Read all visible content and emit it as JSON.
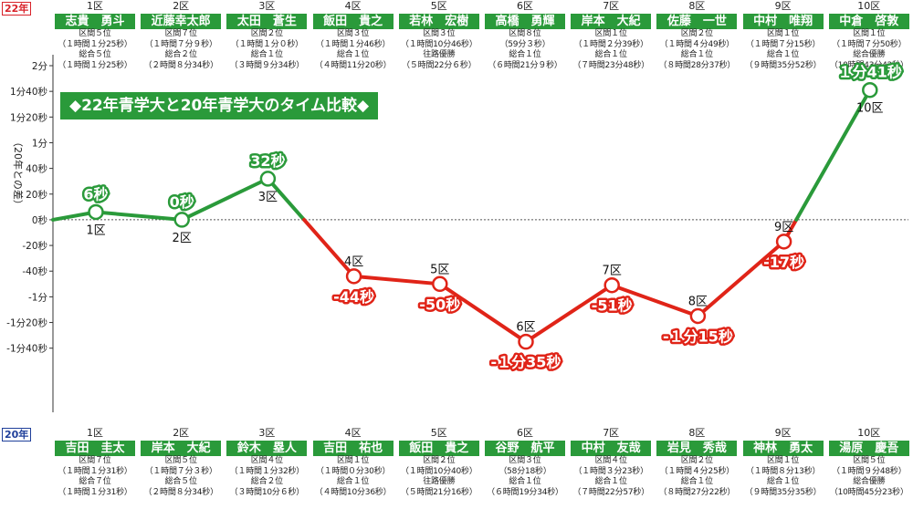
{
  "chart_data": {
    "type": "line",
    "title": "◆22年青学大と20年青学大のタイム比較◆",
    "ylabel": "（20年との差）",
    "y_unit": "seconds",
    "ylim": [
      -140,
      120
    ],
    "y_ticks": [
      {
        "value": 120,
        "label": "2分"
      },
      {
        "value": 100,
        "label": "1分40秒"
      },
      {
        "value": 80,
        "label": "1分20秒"
      },
      {
        "value": 60,
        "label": "1分"
      },
      {
        "value": 40,
        "label": "40秒"
      },
      {
        "value": 20,
        "label": "20秒"
      },
      {
        "value": 0,
        "label": "0秒"
      },
      {
        "value": -20,
        "label": "-20秒"
      },
      {
        "value": -40,
        "label": "-40秒"
      },
      {
        "value": -60,
        "label": "-1分"
      },
      {
        "value": -80,
        "label": "-1分20秒"
      },
      {
        "value": -100,
        "label": "-1分40秒"
      }
    ],
    "categories": [
      "1区",
      "2区",
      "3区",
      "4区",
      "5区",
      "6区",
      "7区",
      "8区",
      "9区",
      "10区"
    ],
    "values": [
      6,
      0,
      32,
      -44,
      -50,
      -95,
      -51,
      -75,
      -17,
      101
    ],
    "value_labels": [
      "6秒",
      "0秒",
      "32秒",
      "-44秒",
      "-50秒",
      "-１分35秒",
      "-51秒",
      "-１分15秒",
      "-17秒",
      "１分41秒"
    ],
    "colors": {
      "positive": "#2a9a3a",
      "negative": "#e02418",
      "node_fill": "#ffffff"
    },
    "grid": false
  },
  "top_band": {
    "year_tag": "22年",
    "legs": [
      {
        "leg": "1区",
        "name": "志貴　勇斗",
        "lines": [
          "区間５位",
          "（１時間１分25秒）",
          "総合５位",
          "（１時間１分25秒）"
        ]
      },
      {
        "leg": "2区",
        "name": "近藤幸太郎",
        "lines": [
          "区間７位",
          "（１時間７分９秒）",
          "総合２位",
          "（２時間８分34秒）"
        ]
      },
      {
        "leg": "3区",
        "name": "太田　蒼生",
        "lines": [
          "区間２位",
          "（１時間１分０秒）",
          "総合１位",
          "（３時間９分34秒）"
        ]
      },
      {
        "leg": "4区",
        "name": "飯田　貴之",
        "lines": [
          "区間３位",
          "（１時間１分46秒）",
          "総合１位",
          "（４時間11分20秒）"
        ]
      },
      {
        "leg": "5区",
        "name": "若林　宏樹",
        "lines": [
          "区間３位",
          "（１時間10分46秒）",
          "往路優勝",
          "（５時間22分６秒）"
        ]
      },
      {
        "leg": "6区",
        "name": "高橋　勇輝",
        "lines": [
          "区間８位",
          "（59分３秒）",
          "総合１位",
          "（６時間21分９秒）"
        ]
      },
      {
        "leg": "7区",
        "name": "岸本　大紀",
        "lines": [
          "区間１位",
          "（１時間２分39秒）",
          "総合１位",
          "（７時間23分48秒）"
        ]
      },
      {
        "leg": "8区",
        "name": "佐藤　一世",
        "lines": [
          "区間２位",
          "（１時間４分49秒）",
          "総合１位",
          "（８時間28分37秒）"
        ]
      },
      {
        "leg": "9区",
        "name": "中村　唯翔",
        "lines": [
          "区間１位",
          "（１時間７分15秒）",
          "総合１位",
          "（９時間35分52秒）"
        ]
      },
      {
        "leg": "10区",
        "name": "中倉　啓敦",
        "lines": [
          "区間１位",
          "（１時間７分50秒）",
          "総合優勝",
          "（10時間43分42秒）"
        ]
      }
    ]
  },
  "bottom_band": {
    "year_tag": "20年",
    "legs": [
      {
        "leg": "1区",
        "name": "吉田　圭太",
        "lines": [
          "区間７位",
          "（１時間１分31秒）",
          "総合７位",
          "（１時間１分31秒）"
        ]
      },
      {
        "leg": "2区",
        "name": "岸本　大紀",
        "lines": [
          "区間５位",
          "（１時間７分３秒）",
          "総合５位",
          "（２時間８分34秒）"
        ]
      },
      {
        "leg": "3区",
        "name": "鈴木　塁人",
        "lines": [
          "区間４位",
          "（１時間１分32秒）",
          "総合２位",
          "（３時間10分６秒）"
        ]
      },
      {
        "leg": "4区",
        "name": "吉田　祐也",
        "lines": [
          "区間１位",
          "（１時間０分30秒）",
          "総合１位",
          "（４時間10分36秒）"
        ]
      },
      {
        "leg": "5区",
        "name": "飯田　貴之",
        "lines": [
          "区間２位",
          "（１時間10分40秒）",
          "往路優勝",
          "（５時間21分16秒）"
        ]
      },
      {
        "leg": "6区",
        "name": "谷野　航平",
        "lines": [
          "区間３位",
          "（58分18秒）",
          "総合１位",
          "（６時間19分34秒）"
        ]
      },
      {
        "leg": "7区",
        "name": "中村　友哉",
        "lines": [
          "区間４位",
          "（１時間３分23秒）",
          "総合１位",
          "（７時間22分57秒）"
        ]
      },
      {
        "leg": "8区",
        "name": "岩見　秀哉",
        "lines": [
          "区間２位",
          "（１時間４分25秒）",
          "総合１位",
          "（８時間27分22秒）"
        ]
      },
      {
        "leg": "9区",
        "name": "神林　勇太",
        "lines": [
          "区間１位",
          "（１時間８分13秒）",
          "総合１位",
          "（９時間35分35秒）"
        ]
      },
      {
        "leg": "10区",
        "name": "湯原　慶吾",
        "lines": [
          "区間５位",
          "（１時間９分48秒）",
          "総合優勝",
          "（10時間45分23秒）"
        ]
      }
    ]
  }
}
